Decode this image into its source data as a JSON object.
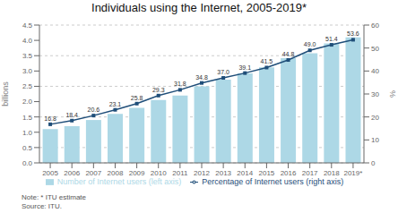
{
  "chart_data": {
    "type": "bar",
    "title": "Individuals using the Internet, 2005-2019*",
    "categories": [
      "2005",
      "2006",
      "2007",
      "2008",
      "2009",
      "2010",
      "2011",
      "2012",
      "2013",
      "2014",
      "2015",
      "2016",
      "2017",
      "2018",
      "2019*"
    ],
    "series": [
      {
        "name": "Number of Internet users (left axis)",
        "type": "bar",
        "axis": "y",
        "color": "#add8e6",
        "values": [
          1.1,
          1.2,
          1.4,
          1.6,
          1.8,
          2.05,
          2.2,
          2.5,
          2.72,
          2.92,
          3.12,
          3.42,
          3.58,
          3.9,
          4.1
        ]
      },
      {
        "name": "Percentage of Internet users (right axis)",
        "type": "line",
        "axis": "y2",
        "color": "#1f4e79",
        "marker": "square",
        "data_labels": true,
        "values": [
          16.8,
          18.4,
          20.6,
          23.1,
          25.8,
          29.3,
          31.8,
          34.8,
          37.0,
          39.1,
          41.5,
          44.8,
          49.0,
          51.4,
          53.6
        ],
        "value_labels": [
          "16.8",
          "18.4",
          "20.6",
          "23.1",
          "25.8",
          "29.3",
          "31.8",
          "34.8",
          "37.0",
          "39.1",
          "41.5",
          "44.8",
          "49.0",
          "51.4",
          "53.6"
        ]
      }
    ],
    "y_label": "billions",
    "y2_label": "%",
    "ylim": [
      0,
      4.5
    ],
    "yticks": [
      {
        "value": 0,
        "label": "0.0"
      },
      0.5,
      {
        "value": 1,
        "label": "1.0"
      },
      1.5,
      {
        "value": 2,
        "label": "2.0"
      },
      2.5,
      {
        "value": 3,
        "label": "3.0"
      },
      3.5,
      {
        "value": 4,
        "label": "4.0"
      },
      4.5
    ],
    "y2lim": [
      0,
      60
    ],
    "y2ticks": [
      0,
      10,
      20,
      30,
      40,
      50,
      60
    ],
    "grid": true,
    "legend": "bottom",
    "annotations": [
      "Note: * ITU estimate",
      "Source: ITU."
    ]
  }
}
